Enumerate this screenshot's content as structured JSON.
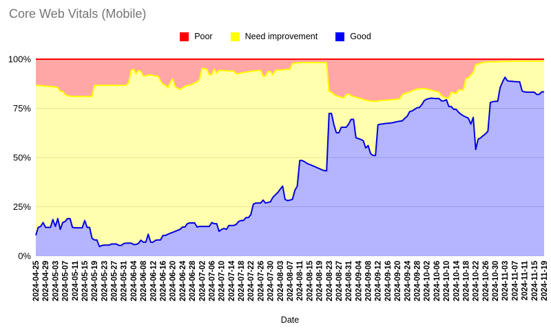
{
  "title": "Core Web Vitals (Mobile)",
  "xlabel": "Date",
  "legend": [
    {
      "label": "Poor",
      "color": "#ff0000"
    },
    {
      "label": "Need improvement",
      "color": "#ffff00"
    },
    {
      "label": "Good",
      "color": "#0000ff"
    }
  ],
  "style": {
    "title_color": "#757575",
    "grid_color": "#d9d9d9",
    "axis_text_color": "#000000",
    "poor_fill": "rgba(255,0,0,0.35)",
    "ni_fill": "rgba(255,255,0,0.32)",
    "good_fill": "rgba(0,0,255,0.29)",
    "poor_stroke": "#ff0000",
    "ni_stroke": "#ffff00",
    "good_stroke": "#0000e0"
  },
  "chart_data": {
    "type": "area",
    "stacked": true,
    "title": "Core Web Vitals (Mobile)",
    "xlabel": "Date",
    "ylabel": "",
    "ylim": [
      0,
      100
    ],
    "grid": true,
    "legend_position": "top",
    "start_date": "2024-04-25",
    "end_date": "2024-11-19",
    "interval_days": 1,
    "tick_every": 4,
    "y_ticks": [
      0,
      25,
      50,
      75,
      100
    ],
    "y_tick_labels": [
      "0%",
      "25%",
      "50%",
      "75%",
      "100%"
    ],
    "x_tick_labels": [
      "2024-04-25",
      "2024-04-29",
      "2024-05-03",
      "2024-05-07",
      "2024-05-11",
      "2024-05-15",
      "2024-05-19",
      "2024-05-23",
      "2024-05-27",
      "2024-05-31",
      "2024-06-04",
      "2024-06-08",
      "2024-06-12",
      "2024-06-16",
      "2024-06-20",
      "2024-06-24",
      "2024-06-28",
      "2024-07-02",
      "2024-07-06",
      "2024-07-10",
      "2024-07-14",
      "2024-07-18",
      "2024-07-22",
      "2024-07-26",
      "2024-07-30",
      "2024-08-03",
      "2024-08-07",
      "2024-08-11",
      "2024-08-15",
      "2024-08-19",
      "2024-08-23",
      "2024-08-27",
      "2024-08-31",
      "2024-09-04",
      "2024-09-08",
      "2024-09-12",
      "2024-09-16",
      "2024-09-20",
      "2024-09-24",
      "2024-09-28",
      "2024-10-02",
      "2024-10-06",
      "2024-10-10",
      "2024-10-14",
      "2024-10-18",
      "2024-10-22",
      "2024-10-26",
      "2024-10-30",
      "2024-11-03",
      "2024-11-07",
      "2024-11-11",
      "2024-11-15",
      "2024-11-19"
    ],
    "series_names": [
      "Poor",
      "Need improvement",
      "Good"
    ],
    "boundaries_note": "good_top = Good%; need_improvement_top = Good%+NeedImprovement% (cumulative); Poor fills up to 100%",
    "boundaries": {
      "good_top": [
        10.5,
        14.5,
        15,
        17,
        14.5,
        14.5,
        14.5,
        18.5,
        15,
        19,
        13.5,
        17,
        17.5,
        19,
        19,
        14.5,
        14.3,
        14.3,
        14.3,
        14.3,
        18,
        14.5,
        14.5,
        9,
        8.1,
        8.1,
        4.8,
        5.3,
        5.5,
        5.5,
        5.5,
        6.1,
        6.1,
        6.1,
        5.4,
        5.4,
        6.3,
        6.5,
        6.5,
        6.5,
        5.8,
        5.8,
        6.4,
        8,
        7,
        7,
        11,
        7,
        7,
        8,
        8.1,
        8.1,
        10.4,
        10.4,
        11,
        11.5,
        12,
        12.5,
        13,
        13.5,
        14.7,
        14.7,
        16.4,
        16.8,
        16.8,
        16.8,
        14.7,
        15,
        15,
        15,
        15,
        15,
        17,
        16.4,
        16.4,
        12.5,
        13.5,
        14,
        13.5,
        15.5,
        15.5,
        15.5,
        16,
        17.5,
        18,
        18,
        19.5,
        19.5,
        21,
        26.3,
        26.9,
        26.9,
        26.9,
        28.4,
        26.9,
        27.2,
        27.5,
        29.8,
        31,
        32.2,
        33.9,
        35.5,
        28.7,
        28.1,
        28.4,
        28.7,
        33.3,
        35.5,
        48.5,
        48.5,
        47.9,
        47,
        46.5,
        46,
        45.5,
        44.9,
        44.4,
        43.8,
        43.4,
        43.2,
        72.4,
        72.4,
        66.5,
        62.6,
        62.6,
        65.4,
        65.4,
        65.4,
        67,
        69.4,
        69.4,
        60.1,
        59.6,
        59.2,
        58.6,
        54.9,
        56.1,
        52,
        51.1,
        51.1,
        66.6,
        67,
        67.1,
        67.3,
        67.4,
        67.5,
        67.7,
        68,
        68.3,
        68.5,
        68.7,
        70,
        71,
        73.4,
        73.7,
        74.5,
        75.3,
        75.5,
        77,
        79,
        79.7,
        80,
        80.2,
        80,
        80,
        80,
        78.8,
        78.8,
        79.4,
        76,
        75.9,
        74.5,
        74.5,
        73,
        72,
        71.2,
        70.6,
        70,
        67,
        70.4,
        54.1,
        59.3,
        60,
        61.1,
        62,
        63.4,
        78,
        78.4,
        78.6,
        78.6,
        85.5,
        88.5,
        90.8,
        89,
        88.8,
        88.7,
        88.6,
        88.5,
        88.5,
        83.8,
        83.4,
        83.2,
        83.2,
        83.2,
        83.2,
        82.1,
        82.1,
        83.4,
        83.4
      ],
      "need_improvement_top": [
        86.7,
        86.6,
        86.5,
        86.4,
        86.3,
        86.2,
        86.1,
        86,
        85.8,
        85.6,
        83.6,
        83.6,
        82,
        81.5,
        81.2,
        81,
        81,
        81,
        81,
        81,
        81,
        81,
        81,
        81,
        86.7,
        86.7,
        86.7,
        86.7,
        86.7,
        86.7,
        86.7,
        86.7,
        86.7,
        86.7,
        86.7,
        86.7,
        86.7,
        86.7,
        88,
        94.3,
        94.9,
        92.6,
        94.3,
        93.7,
        91.4,
        91.5,
        92,
        92,
        91.7,
        91.4,
        91.4,
        89,
        87.3,
        86.7,
        85.5,
        87.9,
        90,
        86.1,
        85.2,
        84.6,
        85.5,
        86.1,
        86.7,
        86.7,
        87.3,
        87.9,
        88.5,
        89.6,
        95.4,
        95.2,
        94.9,
        92,
        92.3,
        94.9,
        92.9,
        94.3,
        94.2,
        94.2,
        94.1,
        94,
        94,
        93.9,
        92.6,
        92.6,
        93,
        93.2,
        93.4,
        93.6,
        93.8,
        94,
        94.1,
        94.2,
        94.3,
        91.4,
        91.4,
        93.7,
        93.7,
        92,
        94.3,
        94.4,
        94.5,
        94.6,
        94.7,
        94.8,
        94.9,
        97.8,
        98,
        98.1,
        98.2,
        98.3,
        98.3,
        98.3,
        98.3,
        98.3,
        98.3,
        98.3,
        98.3,
        98.3,
        98.2,
        98.2,
        83.5,
        83.2,
        82,
        81.4,
        81,
        80.6,
        80.3,
        81.9,
        82.3,
        81.4,
        81,
        80.6,
        80.3,
        79.9,
        79.5,
        79.1,
        78.9,
        78.7,
        78.6,
        78.6,
        78.8,
        78.9,
        79,
        79.1,
        79.2,
        79.3,
        79.4,
        79.5,
        79.7,
        79.9,
        82,
        82.5,
        83,
        83.2,
        84,
        84.4,
        84.8,
        85,
        85,
        85,
        84.8,
        84.5,
        84.2,
        83.8,
        83.5,
        83.2,
        81.4,
        80.8,
        80.3,
        80.3,
        83.2,
        82.9,
        82.6,
        84.4,
        84.4,
        84.4,
        90.2,
        90.5,
        92,
        93.2,
        97.2,
        97.5,
        98,
        98.3,
        98.5,
        98.6,
        98.6,
        98.6,
        98.7,
        98.7,
        98.8,
        98.8,
        98.9,
        98.9,
        98.9,
        99,
        99,
        99,
        99,
        99,
        99,
        99,
        99,
        99,
        99,
        99,
        99,
        99,
        99
      ],
      "poor_top": 100
    }
  }
}
